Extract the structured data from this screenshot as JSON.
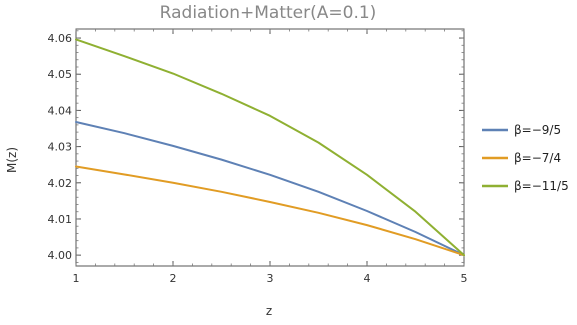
{
  "chart_data": {
    "type": "line",
    "title": "Radiation+Matter(A=0.1)",
    "xlabel": "z",
    "ylabel": "M(z)",
    "xlim": [
      1,
      5
    ],
    "ylim": [
      3.997,
      4.0625
    ],
    "xticks": [
      "1",
      "2",
      "3",
      "4",
      "5"
    ],
    "yticks": [
      "4.00",
      "4.01",
      "4.02",
      "4.03",
      "4.04",
      "4.05",
      "4.06"
    ],
    "grid": false,
    "legend_position": "right",
    "x": [
      1,
      1.5,
      2,
      2.5,
      3,
      3.5,
      4,
      4.5,
      5
    ],
    "series": [
      {
        "name": "β=−9/5",
        "color": "#5e81b5",
        "values": [
          4.0368,
          4.0337,
          4.0302,
          4.0264,
          4.0222,
          4.0175,
          4.0122,
          4.0064,
          4.0
        ]
      },
      {
        "name": "β=−7/4",
        "color": "#e19c24",
        "values": [
          4.0245,
          4.0223,
          4.02,
          4.0175,
          4.0147,
          4.0117,
          4.0083,
          4.0044,
          4.0
        ]
      },
      {
        "name": "β=−11/5",
        "color": "#8fb032",
        "values": [
          4.0596,
          4.055,
          4.0502,
          4.0446,
          4.0385,
          4.0311,
          4.0222,
          4.012,
          4.0
        ]
      }
    ]
  }
}
